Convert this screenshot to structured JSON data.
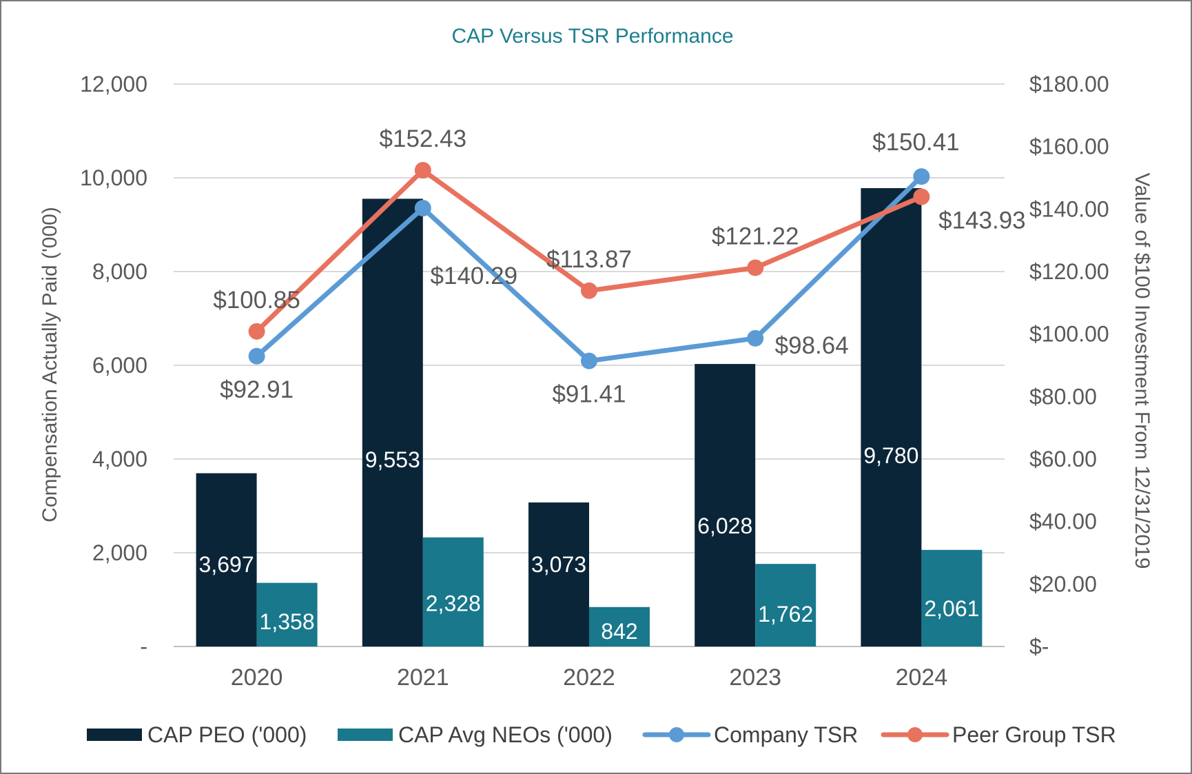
{
  "chart_data": {
    "type": "bar",
    "title": "CAP Versus TSR Performance",
    "categories": [
      "2020",
      "2021",
      "2022",
      "2023",
      "2024"
    ],
    "ylabel": "Compensation Actually Paid ('000)",
    "y2label": "Value of $100 Investment From 12/31/2019",
    "ylim": [
      0,
      12000
    ],
    "y2lim": [
      0,
      180
    ],
    "yticks": [
      "-",
      "2,000",
      "4,000",
      "6,000",
      "8,000",
      "10,000",
      "12,000"
    ],
    "y2ticks": [
      "$-",
      "$20.00",
      "$40.00",
      "$60.00",
      "$80.00",
      "$100.00",
      "$120.00",
      "$140.00",
      "$160.00",
      "$180.00"
    ],
    "grid": true,
    "legend_position": "bottom",
    "series": [
      {
        "name": "CAP PEO ('000)",
        "type": "bar",
        "axis": "left",
        "color": "#0b2538",
        "values": [
          3697,
          9553,
          3073,
          6028,
          9780
        ],
        "labels": [
          "3,697",
          "9,553",
          "3,073",
          "6,028",
          "9,780"
        ]
      },
      {
        "name": "CAP Avg NEOs ('000)",
        "type": "bar",
        "axis": "left",
        "color": "#19788b",
        "values": [
          1358,
          2328,
          842,
          1762,
          2061
        ],
        "labels": [
          "1,358",
          "2,328",
          "842",
          "1,762",
          "2,061"
        ]
      },
      {
        "name": "Company TSR",
        "type": "line",
        "axis": "right",
        "color": "#5b9bd5",
        "values": [
          92.91,
          140.29,
          91.41,
          98.64,
          150.41
        ],
        "labels": [
          "$92.91",
          "$140.29",
          "$91.41",
          "$98.64",
          "$150.41"
        ]
      },
      {
        "name": "Peer Group TSR",
        "type": "line",
        "axis": "right",
        "color": "#e8725e",
        "values": [
          100.85,
          152.43,
          113.87,
          121.22,
          143.93
        ],
        "labels": [
          "$100.85",
          "$152.43",
          "$113.87",
          "$121.22",
          "$143.93"
        ]
      }
    ]
  }
}
